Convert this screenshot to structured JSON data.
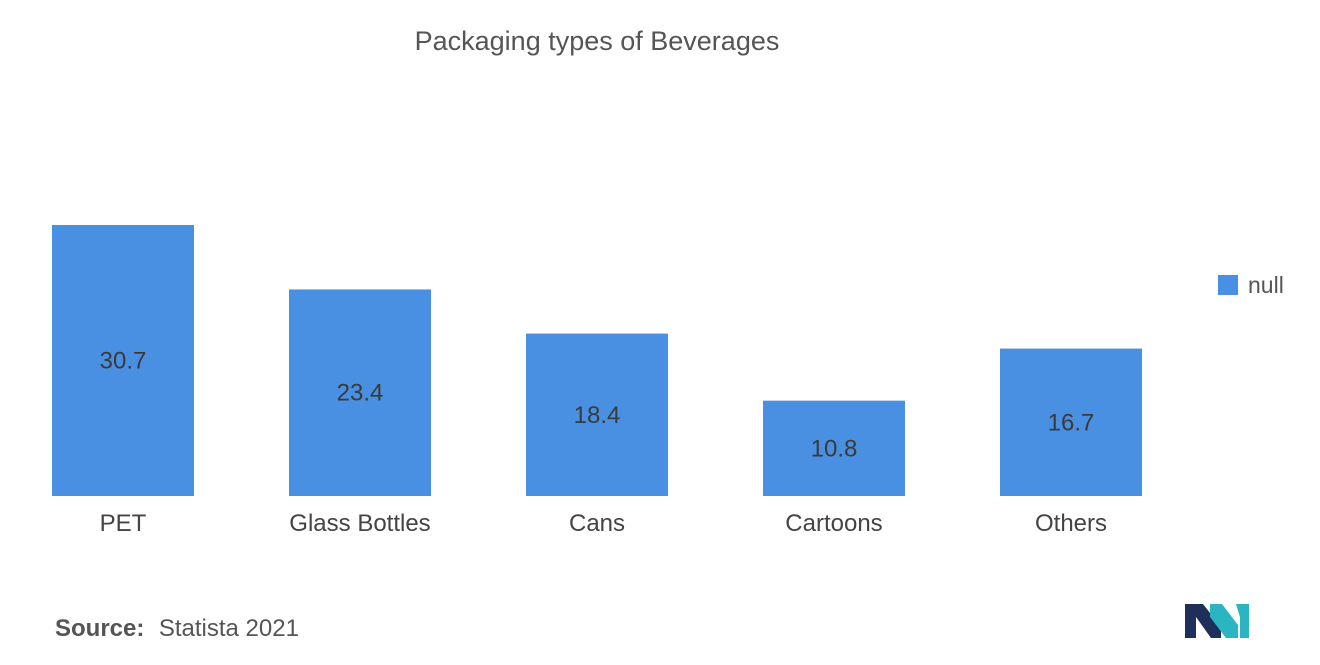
{
  "chart_data": {
    "type": "bar",
    "title": "Packaging types of Beverages",
    "categories": [
      "PET",
      "Glass Bottles",
      "Cans",
      "Cartoons",
      "Others"
    ],
    "series": [
      {
        "name": "null",
        "values": [
          30.7,
          23.4,
          18.4,
          10.8,
          16.7
        ],
        "value_labels": [
          "30.7",
          "23.4",
          "18.4",
          "10.8",
          "16.7"
        ]
      }
    ],
    "xlabel": "",
    "ylabel": "",
    "ylim": [
      0,
      30.7
    ],
    "grid": false,
    "legend": "right",
    "colors": {
      "bar": "#4a90e2"
    }
  },
  "source": {
    "label": "Source:",
    "text": "Statista 2021"
  },
  "logo": {
    "icon": "mordor-intelligence-logo-icon",
    "colors": [
      "#1d2f5a",
      "#2bb5c3"
    ]
  }
}
